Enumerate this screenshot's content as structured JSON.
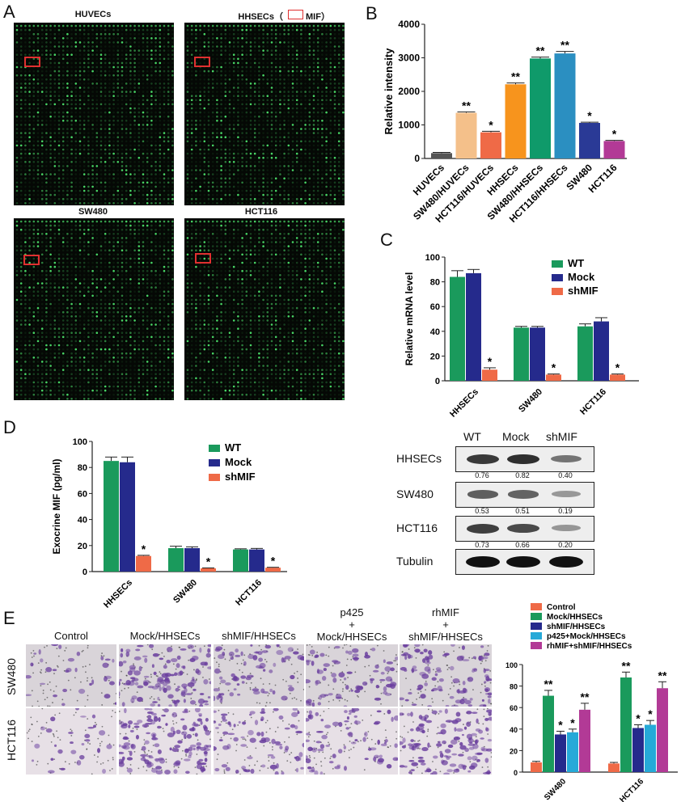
{
  "panels": {
    "a": "A",
    "b": "B",
    "c": "C",
    "d": "D",
    "e": "E"
  },
  "panel_a": {
    "arrays": [
      {
        "title": "HUVECs"
      },
      {
        "title": "HHSECs（",
        "legend_text": "MIF）"
      },
      {
        "title": "SW480"
      },
      {
        "title": "HCT116"
      }
    ]
  },
  "western": {
    "columns": [
      "WT",
      "Mock",
      "shMIF"
    ],
    "rows": [
      {
        "label": "HHSECs",
        "values": [
          "0.76",
          "0.82",
          "0.40"
        ],
        "band_intensity": [
          0.76,
          0.82,
          0.4
        ]
      },
      {
        "label": "SW480",
        "values": [
          "0.53",
          "0.51",
          "0.19"
        ],
        "band_intensity": [
          0.53,
          0.51,
          0.19
        ]
      },
      {
        "label": "HCT116",
        "values": [
          "0.73",
          "0.66",
          "0.20"
        ],
        "band_intensity": [
          0.73,
          0.66,
          0.2
        ]
      },
      {
        "label": "Tubulin",
        "values": [],
        "band_intensity": [
          1,
          1,
          1
        ]
      }
    ]
  },
  "panel_e": {
    "column_labels": [
      "Control",
      "Mock/HHSECs",
      "shMIF/HHSECs",
      "p425\n+\nMock/HHSECs",
      "rhMIF\n+\nshMIF/HHSECs"
    ],
    "row_labels": [
      "SW480",
      "HCT116"
    ],
    "cell_density": [
      [
        0.15,
        0.75,
        0.4,
        0.45,
        0.6
      ],
      [
        0.12,
        0.9,
        0.45,
        0.45,
        0.8
      ]
    ]
  },
  "colors": {
    "green": "#1a9a5c",
    "navy": "#252a8c",
    "salmon": "#ef6a47",
    "grey": "#555555",
    "peach": "#f4c08a",
    "orange": "#f7941d",
    "teal_green": "#0f9a6a",
    "blue": "#2b8fc1",
    "magenta": "#b23a96",
    "cyan": "#26a9d8"
  },
  "chart_data": [
    {
      "panel": "B",
      "type": "bar",
      "categories": [
        "HUVECs",
        "SW480/HUVECs",
        "HCT116/HUVECs",
        "HHSECs",
        "SW480/HHSECs",
        "HCT116/HHSECs",
        "SW480",
        "HCT116"
      ],
      "values": [
        160,
        1360,
        780,
        2210,
        2980,
        3130,
        1060,
        520
      ],
      "errors": [
        20,
        30,
        30,
        40,
        40,
        60,
        20,
        20
      ],
      "significance": [
        "",
        "**",
        "*",
        "**",
        "**",
        "**",
        "*",
        "*"
      ],
      "bar_colors": [
        "#555555",
        "#f4c08a",
        "#ef6a47",
        "#f7941d",
        "#0f9a6a",
        "#2b8fc1",
        "#2a3a96",
        "#b23a96"
      ],
      "ylabel": "Relative  intensity",
      "ylim": [
        0,
        4000
      ],
      "yticks": [
        "0",
        "1000",
        "2000",
        "3000",
        "4000"
      ]
    },
    {
      "panel": "C",
      "type": "bar",
      "categories": [
        "HHSECs",
        "SW480",
        "HCT116"
      ],
      "series": [
        {
          "name": "WT",
          "values": [
            84,
            43,
            44
          ],
          "errors": [
            5,
            1,
            2
          ]
        },
        {
          "name": "Mock",
          "values": [
            87,
            43,
            48
          ],
          "errors": [
            3,
            1,
            3
          ]
        },
        {
          "name": "shMIF",
          "values": [
            9,
            5,
            5
          ],
          "errors": [
            1.5,
            0.5,
            0.5
          ]
        }
      ],
      "significance": [
        [
          "",
          "",
          "*"
        ],
        [
          "",
          "",
          "*"
        ],
        [
          "",
          "",
          "*"
        ]
      ],
      "ylabel": "Relative mRNA level",
      "ylim": [
        0,
        100
      ],
      "yticks": [
        "0",
        "20",
        "40",
        "60",
        "80",
        "100"
      ]
    },
    {
      "panel": "D",
      "type": "bar",
      "categories": [
        "HHSECs",
        "SW480",
        "HCT116"
      ],
      "series": [
        {
          "name": "WT",
          "values": [
            85,
            18,
            17
          ],
          "errors": [
            3,
            1.5,
            0.5
          ]
        },
        {
          "name": "Mock",
          "values": [
            84,
            18,
            17
          ],
          "errors": [
            4,
            1,
            0.8
          ]
        },
        {
          "name": "shMIF",
          "values": [
            12,
            2.5,
            3
          ],
          "errors": [
            0.5,
            0.3,
            0.3
          ]
        }
      ],
      "significance": [
        [
          "",
          "",
          "*"
        ],
        [
          "",
          "",
          "*"
        ],
        [
          "",
          "",
          "*"
        ]
      ],
      "ylabel": "Exocrine MIF (pg/ml)",
      "ylim": [
        0,
        100
      ],
      "yticks": [
        "0",
        "20",
        "40",
        "60",
        "80",
        "100"
      ]
    },
    {
      "panel": "E",
      "type": "bar",
      "categories": [
        "SW480",
        "HCT116"
      ],
      "series": [
        {
          "name": "Control",
          "values": [
            9,
            8
          ],
          "errors": [
            1,
            1
          ]
        },
        {
          "name": "Mock/HHSECs",
          "values": [
            71,
            88
          ],
          "errors": [
            5,
            5
          ]
        },
        {
          "name": "shMIF/HHSECs",
          "values": [
            35,
            41
          ],
          "errors": [
            3,
            3
          ]
        },
        {
          "name": "p425+Mock/HHSECs",
          "values": [
            37,
            44
          ],
          "errors": [
            3,
            4
          ]
        },
        {
          "name": "rhMIF+shMIF/HHSECs",
          "values": [
            58,
            78
          ],
          "errors": [
            6,
            6
          ]
        }
      ],
      "significance": [
        [
          "",
          "**",
          "*",
          "*",
          "**"
        ],
        [
          "",
          "**",
          "*",
          "*",
          "**"
        ]
      ],
      "ylabel": "Number of migration cells",
      "ylim": [
        0,
        100
      ],
      "yticks": [
        "0",
        "20",
        "40",
        "60",
        "80",
        "100"
      ]
    }
  ]
}
